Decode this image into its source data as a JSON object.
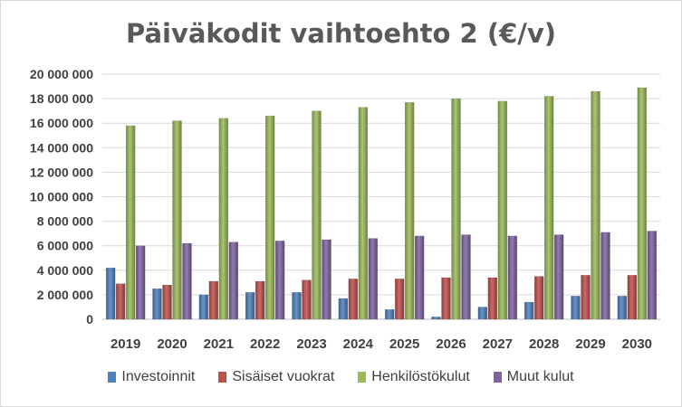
{
  "chart_data": {
    "type": "bar",
    "title": "Päiväkodit vaihtoehto 2 (€/v)",
    "xlabel": "",
    "ylabel": "",
    "ylim": [
      0,
      20000000
    ],
    "yticks": [
      "0",
      "2 000 000",
      "4 000 000",
      "6 000 000",
      "8 000 000",
      "10 000 000",
      "12 000 000",
      "14 000 000",
      "16 000 000",
      "18 000 000",
      "20 000 000"
    ],
    "grid": true,
    "legend_position": "bottom",
    "categories": [
      "2019",
      "2020",
      "2021",
      "2022",
      "2023",
      "2024",
      "2025",
      "2026",
      "2027",
      "2028",
      "2029",
      "2030"
    ],
    "series": [
      {
        "name": "Investoinnit",
        "color": "#4f81bd",
        "values": [
          4200000,
          2500000,
          2000000,
          2200000,
          2200000,
          1700000,
          800000,
          200000,
          1000000,
          1400000,
          1900000,
          1900000
        ]
      },
      {
        "name": "Sisäiset vuokrat",
        "color": "#c0504d",
        "values": [
          2900000,
          2800000,
          3100000,
          3100000,
          3200000,
          3300000,
          3300000,
          3400000,
          3400000,
          3500000,
          3600000,
          3600000
        ]
      },
      {
        "name": "Henkilöstökulut",
        "color": "#9bbb59",
        "values": [
          15800000,
          16200000,
          16400000,
          16600000,
          17000000,
          17300000,
          17700000,
          18000000,
          17800000,
          18200000,
          18600000,
          18900000
        ]
      },
      {
        "name": "Muut kulut",
        "color": "#8064a2",
        "values": [
          6000000,
          6200000,
          6300000,
          6400000,
          6500000,
          6600000,
          6800000,
          6900000,
          6800000,
          6900000,
          7100000,
          7200000
        ]
      }
    ]
  }
}
